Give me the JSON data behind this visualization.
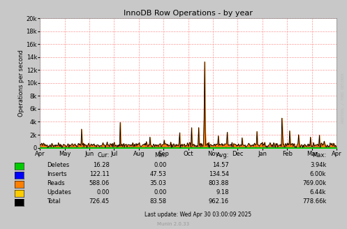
{
  "title": "InnoDB Row Operations - by year",
  "ylabel": "Operations per second",
  "plot_bg_color": "#FFFFFF",
  "grid_color": "#FF9999",
  "watermark": "RRDTOOL / TOBI OETIKER",
  "munin_version": "Munin 2.0.33",
  "last_update": "Last update: Wed Apr 30 03:00:09 2025",
  "ylim": [
    0,
    20000
  ],
  "yticks": [
    0,
    2000,
    4000,
    6000,
    8000,
    10000,
    12000,
    14000,
    16000,
    18000,
    20000
  ],
  "ytick_labels": [
    "0",
    "2k",
    "4k",
    "6k",
    "8k",
    "10k",
    "12k",
    "14k",
    "16k",
    "18k",
    "20k"
  ],
  "xtick_labels": [
    "Apr",
    "May",
    "Jun",
    "Jul",
    "Aug",
    "Sep",
    "Oct",
    "Nov",
    "Dec",
    "Jan",
    "Feb",
    "Mar",
    "Apr"
  ],
  "series_colors": {
    "deletes": "#00CC00",
    "inserts": "#0000FF",
    "reads": "#FF7F00",
    "updates": "#FFCC00",
    "total": "#000000"
  },
  "legend": [
    {
      "label": "Deletes",
      "color": "#00CC00",
      "cur": "16.28",
      "min": "0.00",
      "avg": "14.57",
      "max": "3.94k"
    },
    {
      "label": "Inserts",
      "color": "#0000FF",
      "cur": "122.11",
      "min": "47.53",
      "avg": "134.54",
      "max": "6.00k"
    },
    {
      "label": "Reads",
      "color": "#FF7F00",
      "cur": "588.06",
      "min": "35.03",
      "avg": "803.88",
      "max": "769.00k"
    },
    {
      "label": "Updates",
      "color": "#FFCC00",
      "cur": "0.00",
      "min": "0.00",
      "avg": "9.18",
      "max": "6.44k"
    },
    {
      "label": "Total",
      "color": "#000000",
      "cur": "726.45",
      "min": "83.58",
      "avg": "962.16",
      "max": "778.66k"
    }
  ],
  "outer_bg": "#C8C8C8"
}
